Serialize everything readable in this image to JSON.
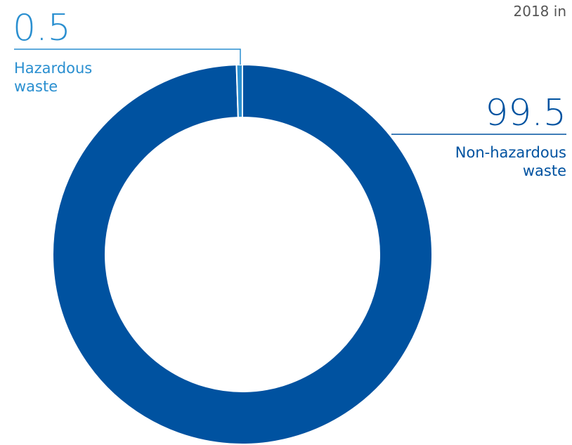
{
  "chart_data": {
    "type": "donut",
    "title": "2018 in",
    "categories": [
      "Hazardous waste",
      "Non-hazardous waste"
    ],
    "values": [
      0.5,
      99.5
    ],
    "colors": [
      "#2a8fd0",
      "#0052a0"
    ]
  }
}
